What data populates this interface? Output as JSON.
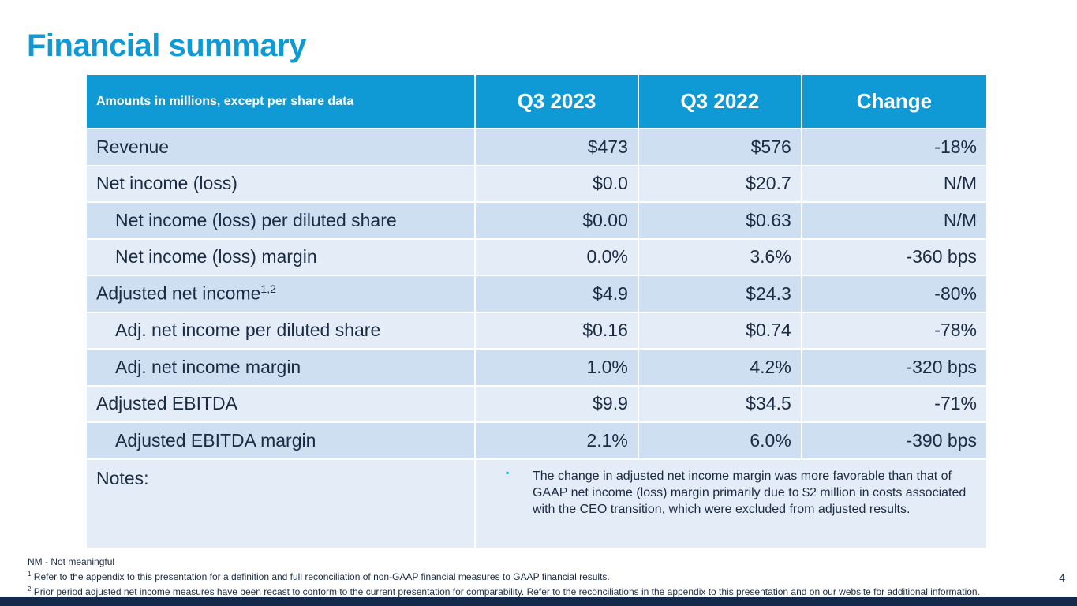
{
  "title": "Financial summary",
  "table": {
    "headers": [
      "Amounts in millions, except per share data",
      "Q3 2023",
      "Q3 2022",
      "Change"
    ],
    "rows": [
      {
        "label": "Revenue",
        "sup": "",
        "q3_2023": "$473",
        "q3_2022": "$576",
        "change": "-18%"
      },
      {
        "label": "Net income (loss)",
        "sup": "",
        "q3_2023": "$0.0",
        "q3_2022": "$20.7",
        "change": "N/M"
      },
      {
        "label": "Net income (loss) per diluted share",
        "sup": "",
        "q3_2023": "$0.00",
        "q3_2022": "$0.63",
        "change": "N/M"
      },
      {
        "label": "Net income (loss) margin",
        "sup": "",
        "q3_2023": "0.0%",
        "q3_2022": "3.6%",
        "change": "-360 bps"
      },
      {
        "label": "Adjusted net income",
        "sup": "1,2",
        "q3_2023": "$4.9",
        "q3_2022": "$24.3",
        "change": "-80%"
      },
      {
        "label": "Adj. net income per diluted share",
        "sup": "",
        "q3_2023": "$0.16",
        "q3_2022": "$0.74",
        "change": "-78%"
      },
      {
        "label": "Adj. net income margin",
        "sup": "",
        "q3_2023": "1.0%",
        "q3_2022": "4.2%",
        "change": "-320 bps"
      },
      {
        "label": "Adjusted EBITDA",
        "sup": "",
        "q3_2023": "$9.9",
        "q3_2022": "$34.5",
        "change": "-71%"
      },
      {
        "label": "Adjusted EBITDA margin",
        "sup": "",
        "q3_2023": "2.1%",
        "q3_2022": "6.0%",
        "change": "-390 bps"
      }
    ],
    "notes_label": "Notes:",
    "notes_text": "The change in adjusted net income margin was more favorable than that of GAAP net income (loss) margin primarily due to $2 million in costs associated with the CEO transition, which were excluded from adjusted results."
  },
  "footnotes": {
    "nm": "NM - Not meaningful",
    "f1_mark": "1",
    "f1": "Refer to the appendix to this presentation for a definition and full reconciliation of non-GAAP financial measures to GAAP financial results.",
    "f2_mark": "2",
    "f2": "Prior period adjusted net income measures have been recast to conform to the current presentation for comparability. Refer to the reconciliations in the appendix to this presentation and on our website for additional information."
  },
  "page_number": "4"
}
